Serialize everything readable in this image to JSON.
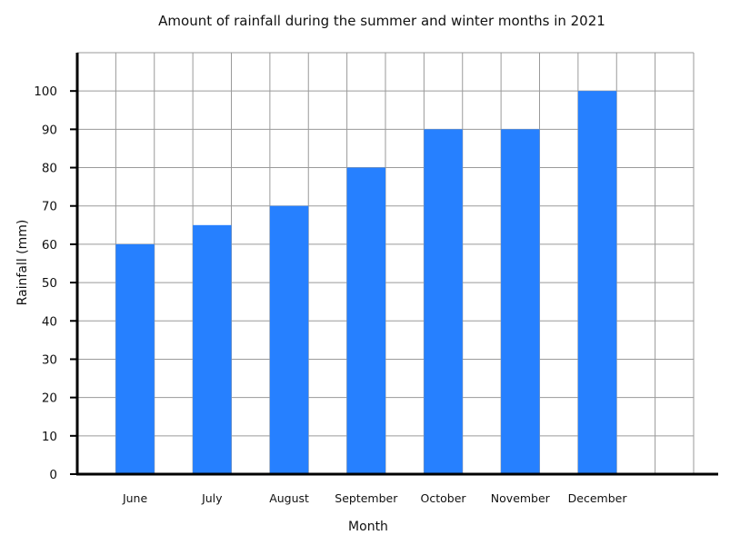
{
  "chart_data": {
    "type": "bar",
    "title": "Amount of rainfall during the summer and winter months in 2021",
    "xlabel": "Month",
    "ylabel": "Rainfall (mm)",
    "categories": [
      "June",
      "July",
      "August",
      "September",
      "October",
      "November",
      "December"
    ],
    "values": [
      60,
      65,
      70,
      80,
      90,
      90,
      100
    ],
    "ylim": [
      0,
      110
    ],
    "yticks": [
      0,
      10,
      20,
      30,
      40,
      50,
      60,
      70,
      80,
      90,
      100
    ],
    "grid": true,
    "legend": "none",
    "bar_color": "#2680FF",
    "grid_color": "#9a9a9a",
    "axis_color": "#000000"
  }
}
